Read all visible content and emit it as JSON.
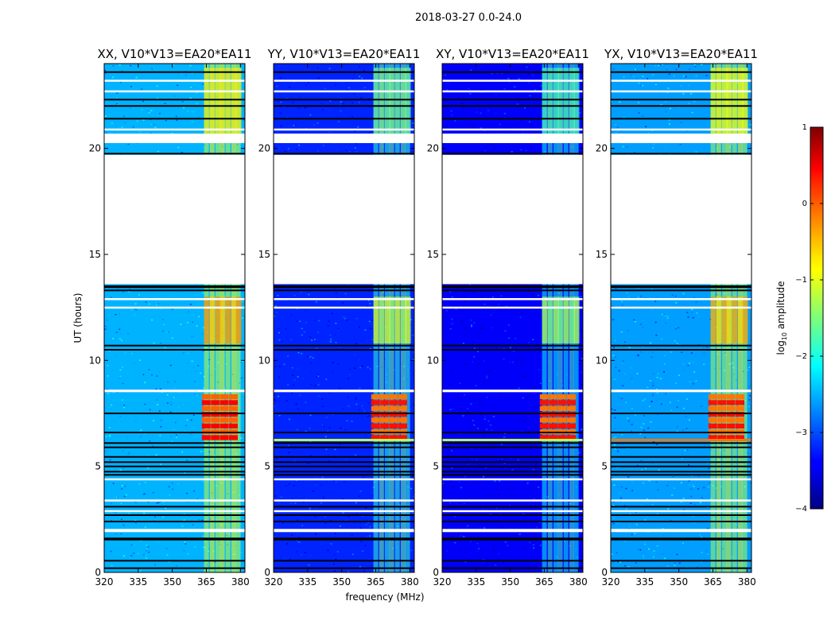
{
  "chart_data": {
    "type": "heatmap",
    "suptitle": "2018-03-27 0.0-24.0",
    "xlabel": "frequency (MHz)",
    "ylabel": "UT (hours)",
    "xlim": [
      320,
      382
    ],
    "ylim": [
      0,
      24
    ],
    "xticks": [
      320,
      335,
      350,
      365,
      380
    ],
    "yticks": [
      0,
      5,
      10,
      15,
      20
    ],
    "colorbar": {
      "label": "log",
      "label_sub": "10",
      "label_rest": " amplitude",
      "range": [
        -4,
        1
      ],
      "ticks": [
        1,
        0,
        -1,
        -2,
        -3,
        -4
      ],
      "tick_labels": [
        "1",
        "0",
        "−1",
        "−2",
        "−3",
        "−4"
      ],
      "colormap": "jet"
    },
    "panels": [
      {
        "title": "XX, V10*V13=EA20*EA11",
        "base_level": -2.5
      },
      {
        "title": "YY, V10*V13=EA20*EA11",
        "base_level": -3.2
      },
      {
        "title": "XY, V10*V13=EA20*EA11",
        "base_level": -3.4
      },
      {
        "title": "YX, V10*V13=EA20*EA11",
        "base_level": -2.6
      }
    ],
    "blank_intervals_ut": [
      [
        1.9,
        2.05
      ],
      [
        8.5,
        8.62
      ],
      [
        13.6,
        19.7
      ],
      [
        20.25,
        20.7
      ]
    ],
    "rfi_band_mhz": [
      363,
      378
    ],
    "strong_rfi_ut": [
      6.2,
      8.4
    ],
    "strong_rfi_level": 0.4
  }
}
